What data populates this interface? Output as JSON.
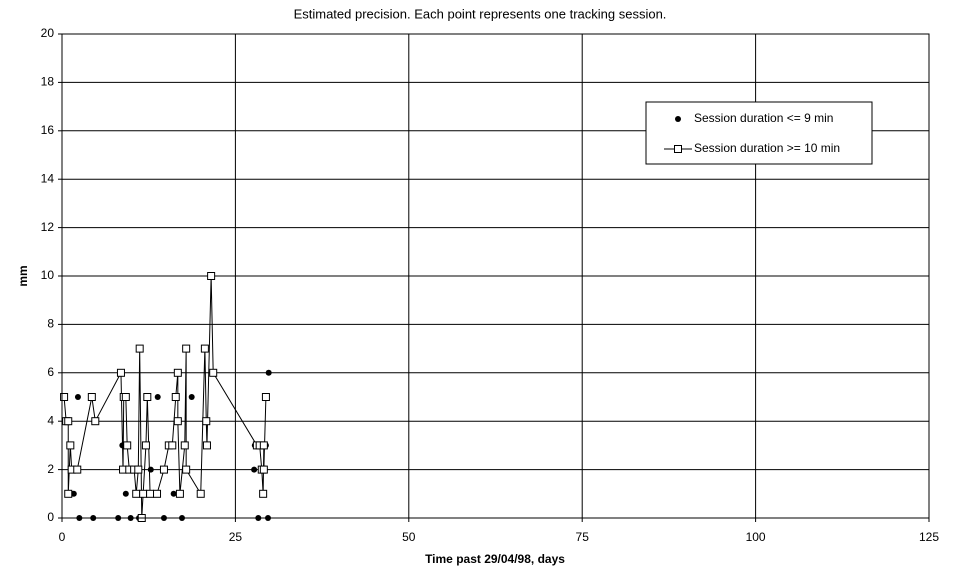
{
  "chart_data": {
    "type": "scatter",
    "title": "Estimated precision. Each point represents one tracking session.",
    "x_label": "Time past 29/04/98, days",
    "y_label": "mm",
    "xlim": [
      0,
      125
    ],
    "xticks": [
      0,
      25,
      50,
      75,
      100,
      125
    ],
    "ylim": [
      0,
      20
    ],
    "yticks": [
      0,
      2,
      4,
      6,
      8,
      10,
      12,
      14,
      16,
      18,
      20
    ],
    "grid": true,
    "legend": "upper-right",
    "series": [
      {
        "name": "Session duration <= 9 min",
        "color": "#000000",
        "mode": "markers",
        "x": [
          1.4,
          1.7,
          2.3,
          2.5,
          4.5,
          8.1,
          8.7,
          9.2,
          9.9,
          11.1,
          11.5,
          12.8,
          13.8,
          14.7,
          15.3,
          16.1,
          17.3,
          18.7,
          27.7,
          27.8,
          28.3,
          28.7,
          29.4,
          29.7,
          29.8
        ],
        "values": [
          1,
          1,
          5,
          0,
          0,
          0,
          3,
          1,
          0,
          0,
          1,
          2,
          5,
          0,
          3,
          1,
          0,
          5,
          2,
          3,
          0,
          2,
          3,
          0,
          6
        ]
      },
      {
        "name": "Session duration >= 10 min",
        "color": "#000000",
        "mode": "lines+markers",
        "x": [
          0.3,
          0.6,
          0.9,
          0.9,
          1.2,
          1.4,
          2.2,
          4.3,
          4.8,
          8.5,
          8.8,
          8.9,
          9.2,
          9.4,
          9.7,
          10.4,
          10.7,
          11.0,
          11.2,
          11.5,
          11.7,
          12.1,
          12.3,
          12.7,
          13.7,
          14.7,
          15.4,
          15.9,
          16.4,
          16.7,
          16.7,
          17.0,
          17.7,
          17.9,
          17.9,
          20.0,
          20.6,
          20.8,
          20.9,
          21.5,
          21.8,
          28.1,
          28.5,
          28.8,
          29.0,
          29.1,
          29.1,
          29.4
        ],
        "values": [
          5,
          4,
          4,
          1,
          3,
          2,
          2,
          5,
          4,
          6,
          2,
          5,
          5,
          3,
          2,
          2,
          1,
          2,
          7,
          0,
          1,
          3,
          5,
          1,
          1,
          2,
          3,
          3,
          5,
          6,
          4,
          1,
          3,
          7,
          2,
          1,
          7,
          4,
          3,
          10,
          6,
          3,
          3,
          2,
          1,
          3,
          2,
          5
        ]
      }
    ]
  }
}
